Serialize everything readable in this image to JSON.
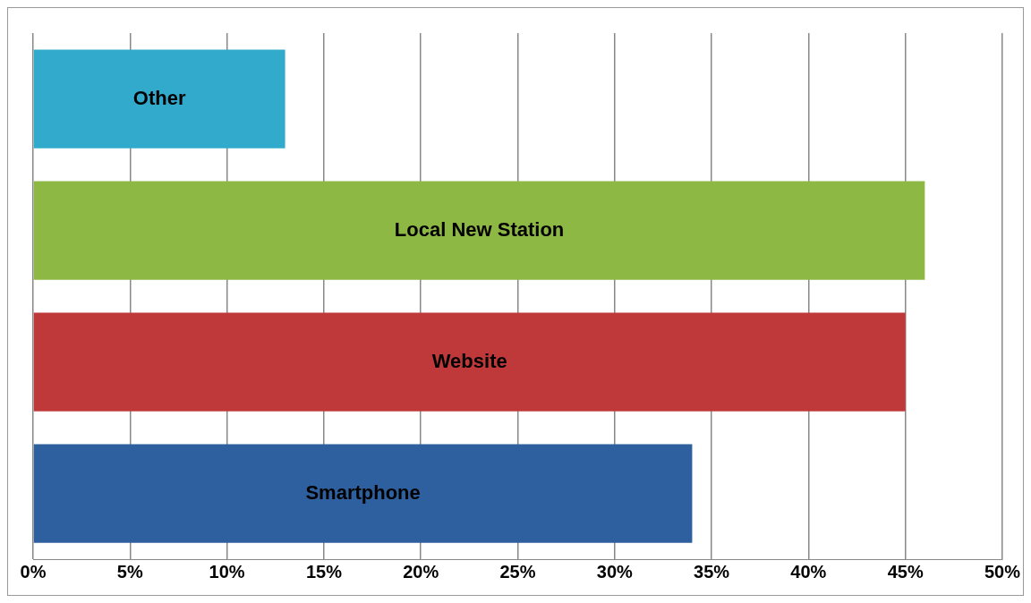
{
  "chart_data": {
    "type": "bar",
    "orientation": "horizontal",
    "categories": [
      "Other",
      "Local New Station",
      "Website",
      "Smartphone"
    ],
    "values": [
      13,
      46,
      45,
      34
    ],
    "colors": [
      "#31aacc",
      "#8db843",
      "#c0393a",
      "#2e5f9e"
    ],
    "xlim": [
      0,
      50
    ],
    "xticks": [
      {
        "value": 0,
        "label": "0%"
      },
      {
        "value": 5,
        "label": "5%"
      },
      {
        "value": 10,
        "label": "10%"
      },
      {
        "value": 15,
        "label": "15%"
      },
      {
        "value": 20,
        "label": "20%"
      },
      {
        "value": 25,
        "label": "25%"
      },
      {
        "value": 30,
        "label": "30%"
      },
      {
        "value": 35,
        "label": "35%"
      },
      {
        "value": 40,
        "label": "40%"
      },
      {
        "value": 45,
        "label": "45%"
      },
      {
        "value": 50,
        "label": "50%"
      }
    ],
    "grid": "x",
    "legend": false,
    "tick_labels": "x"
  }
}
